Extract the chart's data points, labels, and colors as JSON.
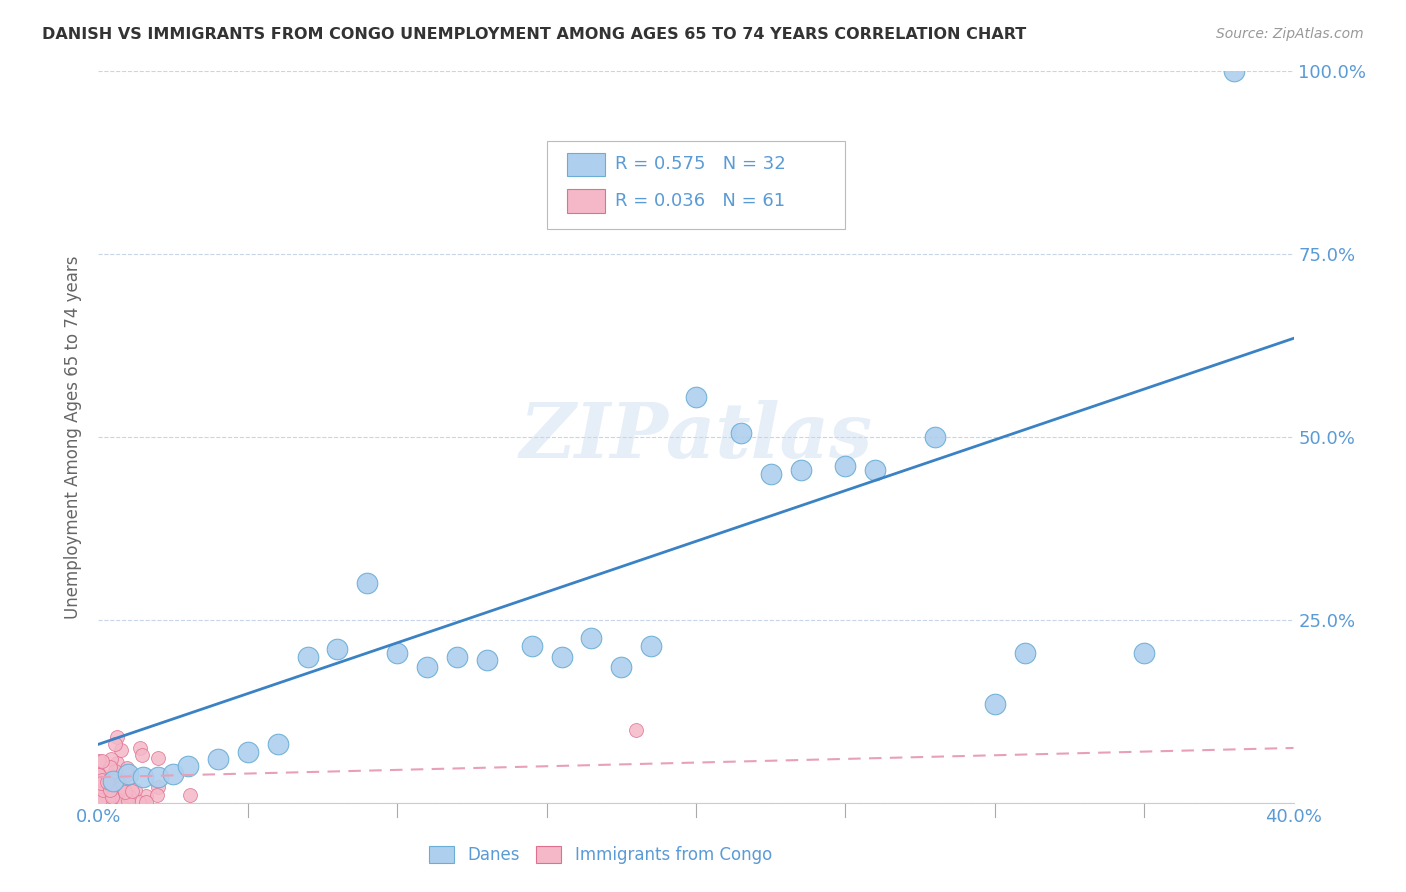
{
  "title": "DANISH VS IMMIGRANTS FROM CONGO UNEMPLOYMENT AMONG AGES 65 TO 74 YEARS CORRELATION CHART",
  "source": "Source: ZipAtlas.com",
  "ylabel": "Unemployment Among Ages 65 to 74 years",
  "xlim": [
    0,
    0.4
  ],
  "ylim": [
    0,
    1.0
  ],
  "danes_R": 0.575,
  "danes_N": 32,
  "congo_R": 0.036,
  "congo_N": 61,
  "danes_color": "#aecfee",
  "danes_edge_color": "#6aaed6",
  "congo_color": "#f4b8c8",
  "congo_edge_color": "#e07090",
  "trendline_danes_color": "#3a82c4",
  "trendline_congo_color": "#e8a0b8",
  "background_color": "#ffffff",
  "grid_color": "#c8d4e8",
  "title_color": "#333333",
  "axis_label_color": "#666666",
  "tick_label_color": "#5b9bd5",
  "legend_R_color": "#5b9bd5",
  "watermark": "ZIPatlas",
  "danes_x": [
    0.005,
    0.01,
    0.015,
    0.02,
    0.025,
    0.03,
    0.04,
    0.05,
    0.06,
    0.07,
    0.08,
    0.09,
    0.1,
    0.11,
    0.12,
    0.13,
    0.145,
    0.155,
    0.165,
    0.175,
    0.185,
    0.2,
    0.215,
    0.225,
    0.235,
    0.25,
    0.26,
    0.28,
    0.3,
    0.31,
    0.35,
    0.38
  ],
  "danes_y": [
    0.03,
    0.04,
    0.035,
    0.035,
    0.04,
    0.05,
    0.06,
    0.07,
    0.08,
    0.2,
    0.21,
    0.3,
    0.205,
    0.185,
    0.2,
    0.195,
    0.215,
    0.2,
    0.225,
    0.185,
    0.215,
    0.555,
    0.505,
    0.45,
    0.455,
    0.46,
    0.455,
    0.5,
    0.135,
    0.205,
    0.205,
    1.0
  ],
  "congo_x": [
    0.0,
    0.001,
    0.002,
    0.003,
    0.004,
    0.005,
    0.006,
    0.007,
    0.008,
    0.009,
    0.0,
    0.001,
    0.002,
    0.003,
    0.004,
    0.005,
    0.006,
    0.007,
    0.008,
    0.009,
    0.0,
    0.001,
    0.002,
    0.003,
    0.004,
    0.005,
    0.006,
    0.007,
    0.008,
    0.009,
    0.0,
    0.001,
    0.002,
    0.003,
    0.004,
    0.005,
    0.006,
    0.007,
    0.008,
    0.009,
    0.0,
    0.001,
    0.002,
    0.003,
    0.004,
    0.005,
    0.006,
    0.007,
    0.008,
    0.009,
    0.0,
    0.001,
    0.002,
    0.003,
    0.004,
    0.005,
    0.006,
    0.007,
    0.008,
    0.009,
    0.18
  ],
  "congo_y": [
    0.02,
    0.02,
    0.02,
    0.02,
    0.02,
    0.02,
    0.02,
    0.02,
    0.02,
    0.02,
    0.03,
    0.03,
    0.03,
    0.03,
    0.03,
    0.03,
    0.03,
    0.03,
    0.03,
    0.03,
    0.04,
    0.04,
    0.04,
    0.04,
    0.04,
    0.04,
    0.04,
    0.04,
    0.04,
    0.04,
    0.05,
    0.05,
    0.05,
    0.05,
    0.05,
    0.05,
    0.05,
    0.05,
    0.05,
    0.05,
    0.06,
    0.06,
    0.06,
    0.06,
    0.06,
    0.06,
    0.06,
    0.06,
    0.06,
    0.06,
    0.07,
    0.07,
    0.07,
    0.07,
    0.07,
    0.07,
    0.07,
    0.07,
    0.07,
    0.07,
    0.1
  ],
  "trendline_danes_x0": 0.0,
  "trendline_danes_y0": 0.08,
  "trendline_danes_x1": 0.4,
  "trendline_danes_y1": 0.635,
  "trendline_congo_x0": 0.0,
  "trendline_congo_y0": 0.035,
  "trendline_congo_x1": 0.4,
  "trendline_congo_y1": 0.075
}
